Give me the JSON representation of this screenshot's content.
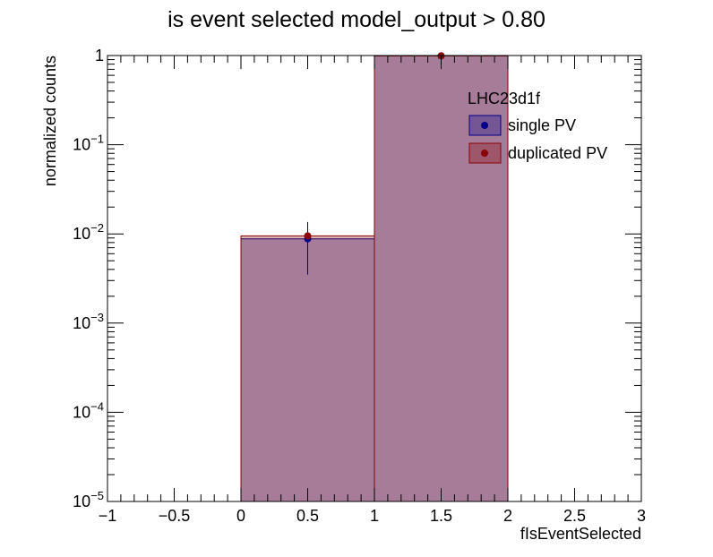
{
  "chart_data": {
    "type": "bar",
    "title": "is event selected  model_output > 0.80",
    "xlabel": "fIsEventSelected",
    "ylabel": "normalized counts",
    "xlim": [
      -1,
      3
    ],
    "ylim": [
      1e-05,
      1
    ],
    "yscale": "log",
    "grid": false,
    "x_ticks": [
      -1,
      -0.5,
      0,
      0.5,
      1,
      1.5,
      2,
      2.5,
      3
    ],
    "x_tick_labels": [
      "−1",
      "−0.5",
      "0",
      "0.5",
      "1",
      "1.5",
      "2",
      "2.5",
      "3"
    ],
    "y_ticks": [
      {
        "value": 1e-05,
        "base": "10",
        "exp": "−5"
      },
      {
        "value": 0.0001,
        "base": "10",
        "exp": "−4"
      },
      {
        "value": 0.001,
        "base": "10",
        "exp": "−3"
      },
      {
        "value": 0.01,
        "base": "10",
        "exp": "−2"
      },
      {
        "value": 0.1,
        "base": "10",
        "exp": "−1"
      },
      {
        "value": 1,
        "base": "1",
        "exp": ""
      }
    ],
    "bins": [
      [
        0,
        1
      ],
      [
        1,
        2
      ]
    ],
    "legend": {
      "title": "LHC23d1f",
      "placement": "top-right"
    },
    "series": [
      {
        "name": "single PV",
        "color": "#00008b",
        "fill": "rgba(0,0,139,0.3)",
        "values": [
          0.0088,
          0.991
        ],
        "err_low": [
          0.0053,
          0.0
        ],
        "err_high": [
          0.0048,
          0.0
        ]
      },
      {
        "name": "duplicated PV",
        "color": "#8b0000",
        "fill": "rgba(139,0,0,0.3)",
        "values": [
          0.0095,
          0.9905
        ],
        "err_low": [
          0.0,
          0.0
        ],
        "err_high": [
          0.0,
          0.0
        ]
      }
    ]
  }
}
